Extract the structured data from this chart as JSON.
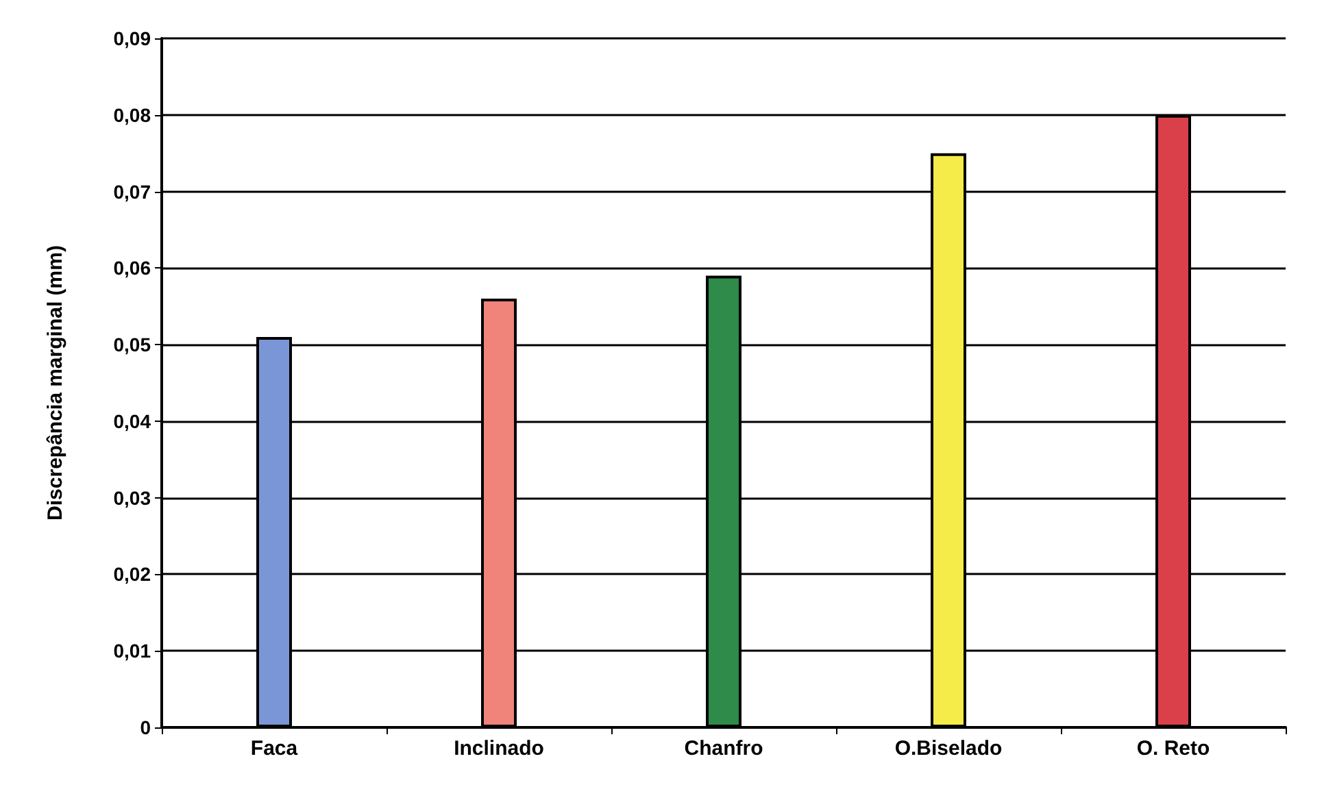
{
  "chart_data": {
    "type": "bar",
    "ylabel": "Discrepância marginal (mm)",
    "categories": [
      "Faca",
      "Inclinado",
      "Chanfro",
      "O.Biselado",
      "O. Reto"
    ],
    "values": [
      0.051,
      0.056,
      0.059,
      0.075,
      0.08
    ],
    "colors": [
      "#7b96d6",
      "#f0837a",
      "#2e8b4a",
      "#f5ec4a",
      "#d9404a"
    ],
    "ylim": [
      0,
      0.09
    ],
    "yticks": [
      0,
      {
        "value": 0.01,
        "label": "0,01"
      },
      {
        "value": 0.02,
        "label": "0,02"
      },
      {
        "value": 0.03,
        "label": "0,03"
      },
      {
        "value": 0.04,
        "label": "0,04"
      },
      {
        "value": 0.05,
        "label": "0,05"
      },
      {
        "value": 0.06,
        "label": "0,06"
      },
      {
        "value": 0.07,
        "label": "0,07"
      },
      {
        "value": 0.08,
        "label": "0,08"
      },
      {
        "value": 0.09,
        "label": "0,09"
      }
    ],
    "grid": "y"
  }
}
